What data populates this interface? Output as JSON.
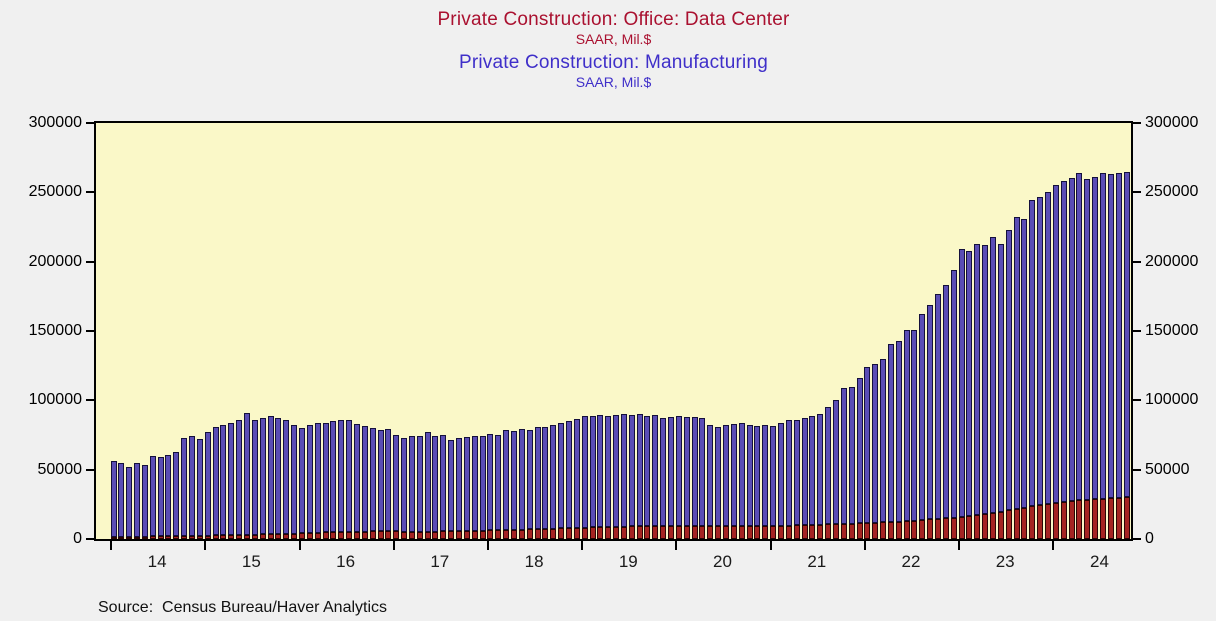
{
  "titles": {
    "series1_title": "Private Construction: Office: Data Center",
    "series1_subtitle": "SAAR, Mil.$",
    "series2_title": "Private Construction: Manufacturing",
    "series2_subtitle": "SAAR, Mil.$"
  },
  "source": "Source:  Census Bureau/Haver Analytics",
  "colors": {
    "title_red": "#aa1130",
    "title_blue": "#3f2fc9",
    "bar_manufacturing": "#5a4db5",
    "bar_data_center": "#a52422",
    "plot_background": "#faf8c8",
    "page_background": "#f0f0f0",
    "axis": "#000000"
  },
  "chart_data": {
    "type": "bar",
    "stacked": true,
    "title": "Private Construction: Office: Data Center / Private Construction: Manufacturing",
    "ylabel": "SAAR, Mil.$",
    "ylim": [
      0,
      300000
    ],
    "y_ticks": [
      0,
      50000,
      100000,
      150000,
      200000,
      250000,
      300000
    ],
    "x_unit": "month",
    "x_start": "2014-01",
    "x_end": "2024-10",
    "n_months": 130,
    "x_tick_years": [
      2014,
      2015,
      2016,
      2017,
      2018,
      2019,
      2020,
      2021,
      2022,
      2023,
      2024
    ],
    "x_tick_labels": [
      "14",
      "15",
      "16",
      "17",
      "18",
      "19",
      "20",
      "21",
      "22",
      "23",
      "24"
    ],
    "grid": false,
    "legend_position": "title",
    "series": [
      {
        "name": "Private Construction: Office: Data Center (SAAR, Mil.$)",
        "color": "#a52422",
        "values": [
          1600,
          1700,
          1700,
          1800,
          1800,
          1900,
          2000,
          2100,
          2200,
          2300,
          2400,
          2400,
          2500,
          2600,
          2600,
          2700,
          2900,
          3000,
          3100,
          3400,
          3600,
          3600,
          3900,
          3900,
          4300,
          4300,
          4600,
          4800,
          4800,
          5100,
          5100,
          5300,
          5300,
          5500,
          5500,
          5500,
          5500,
          5400,
          5300,
          5300,
          5300,
          5400,
          5500,
          5600,
          5700,
          5800,
          5800,
          6000,
          6300,
          6300,
          6500,
          6500,
          6700,
          7000,
          7000,
          7200,
          7500,
          7700,
          7700,
          7900,
          8200,
          8400,
          8700,
          8700,
          8900,
          8900,
          9200,
          9200,
          9400,
          9400,
          9400,
          9400,
          9600,
          9600,
          9600,
          9600,
          9400,
          9400,
          9400,
          9400,
          9400,
          9400,
          9200,
          9200,
          9400,
          9400,
          9600,
          9900,
          9900,
          10100,
          10400,
          10600,
          10600,
          11100,
          11100,
          11600,
          11600,
          11800,
          12300,
          12300,
          12500,
          13000,
          13000,
          13500,
          14200,
          14700,
          14900,
          15400,
          15900,
          16600,
          17100,
          17800,
          18500,
          19500,
          20700,
          21400,
          22600,
          23800,
          24500,
          25000,
          26200,
          26900,
          27400,
          27900,
          28400,
          28600,
          29100,
          29300,
          29800,
          30300
        ]
      },
      {
        "name": "Private Construction: Manufacturing (SAAR, Mil.$)",
        "color": "#5a4db5",
        "values": [
          54400,
          53300,
          50300,
          53200,
          51700,
          58100,
          57000,
          58400,
          60300,
          70200,
          72100,
          69600,
          75000,
          77900,
          79400,
          81300,
          83100,
          88000,
          82900,
          84100,
          85400,
          83900,
          81600,
          78100,
          75700,
          77700,
          78900,
          79200,
          80200,
          80400,
          80900,
          77700,
          76200,
          74500,
          73000,
          74000,
          69500,
          67100,
          68700,
          68700,
          72200,
          68600,
          69500,
          65900,
          66800,
          67700,
          68200,
          68500,
          69200,
          68700,
          72000,
          71500,
          72800,
          71500,
          73500,
          73800,
          75000,
          76300,
          77300,
          78600,
          80300,
          80600,
          80800,
          80300,
          80600,
          81100,
          80300,
          80800,
          79100,
          80100,
          78100,
          78600,
          78900,
          78400,
          78400,
          77400,
          73100,
          71100,
          72600,
          73600,
          74100,
          73100,
          72300,
          72800,
          72100,
          74600,
          75900,
          76100,
          77600,
          78900,
          80100,
          84400,
          89400,
          97900,
          98900,
          104400,
          112400,
          114700,
          117700,
          128700,
          130500,
          138000,
          137500,
          149000,
          154300,
          162300,
          168100,
          178600,
          193600,
          191400,
          195400,
          194200,
          199500,
          193000,
          202300,
          210600,
          208400,
          220700,
          222500,
          225000,
          228800,
          231600,
          232600,
          236100,
          231100,
          232400,
          234900,
          234200,
          234200,
          234700
        ]
      }
    ]
  }
}
